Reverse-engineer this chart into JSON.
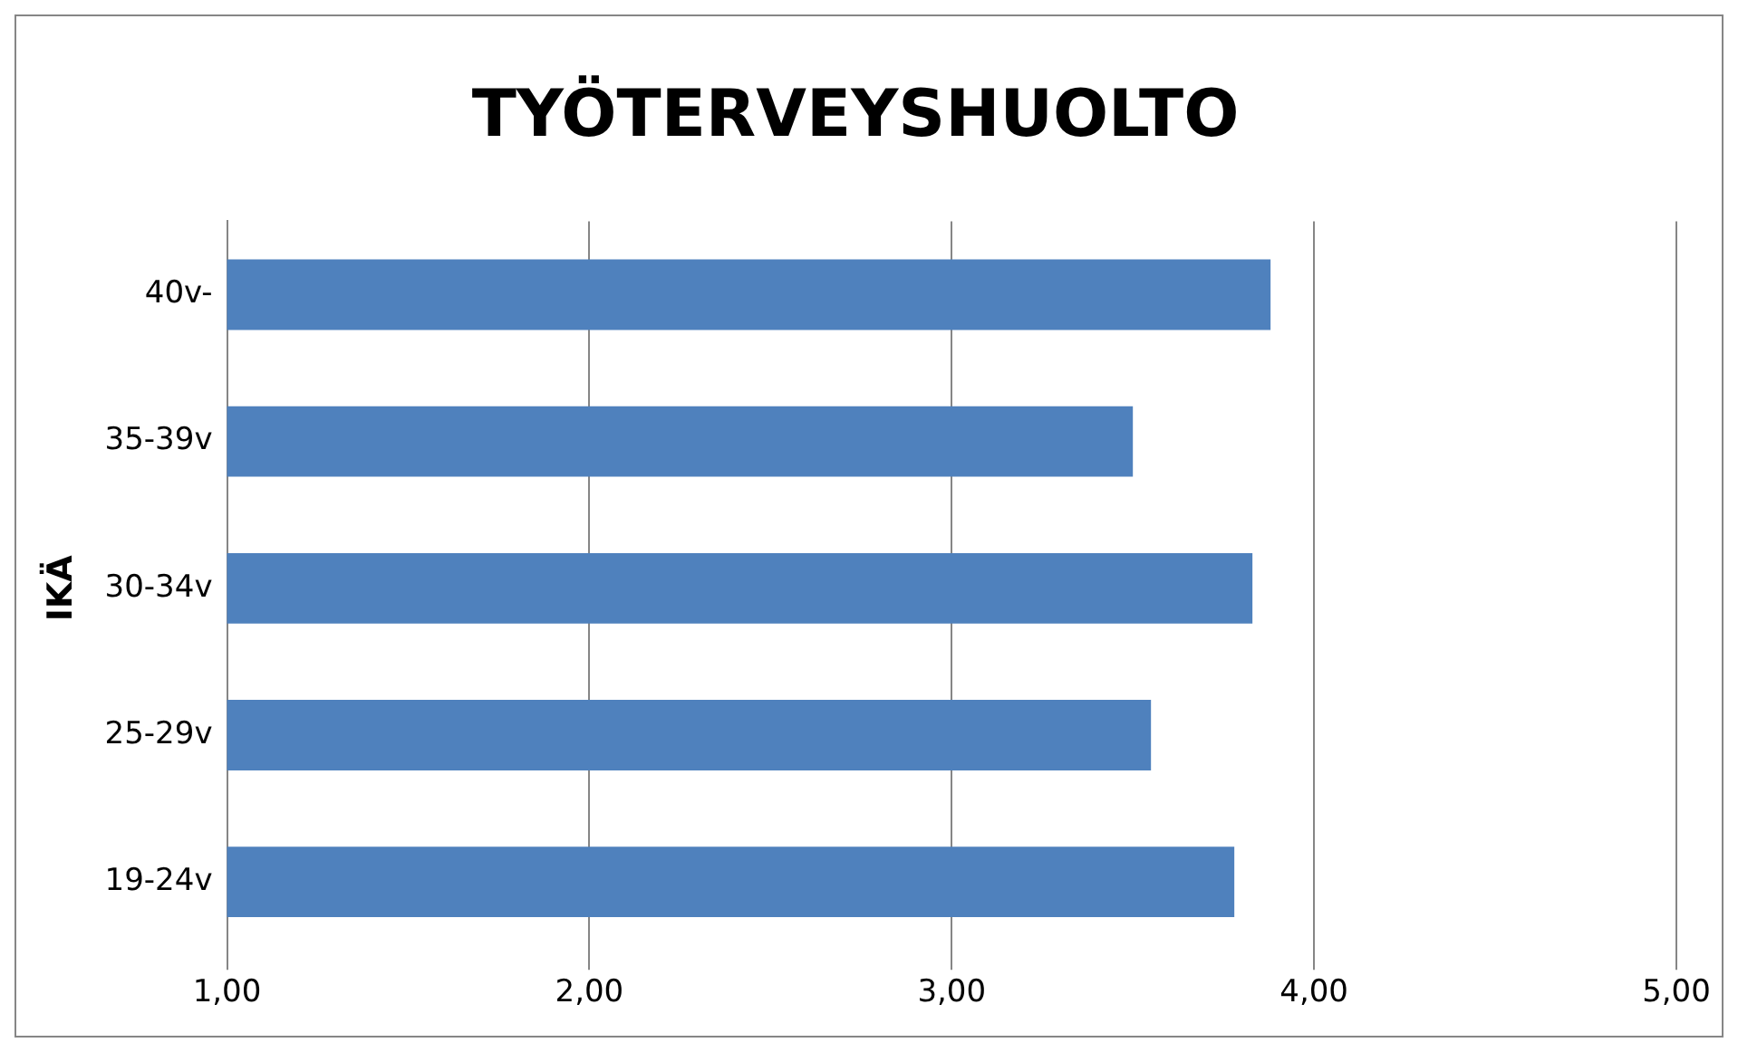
{
  "chart_data": {
    "type": "bar",
    "orientation": "horizontal",
    "title": "TYÖTERVEYSHUOLTO",
    "ylabel": "IKÄ",
    "categories": [
      "40v-",
      "35-39v",
      "30-34v",
      "25-29v",
      "19-24v"
    ],
    "values": [
      3.88,
      3.5,
      3.83,
      3.55,
      3.78
    ],
    "color": "#4f81bd",
    "xlim": [
      1,
      5
    ],
    "xticks": [
      {
        "value": 1,
        "label": "1,00"
      },
      {
        "value": 2,
        "label": "2,00"
      },
      {
        "value": 3,
        "label": "3,00"
      },
      {
        "value": 4,
        "label": "4,00"
      },
      {
        "value": 5,
        "label": "5,00"
      }
    ],
    "grid": "x",
    "legend": false
  }
}
